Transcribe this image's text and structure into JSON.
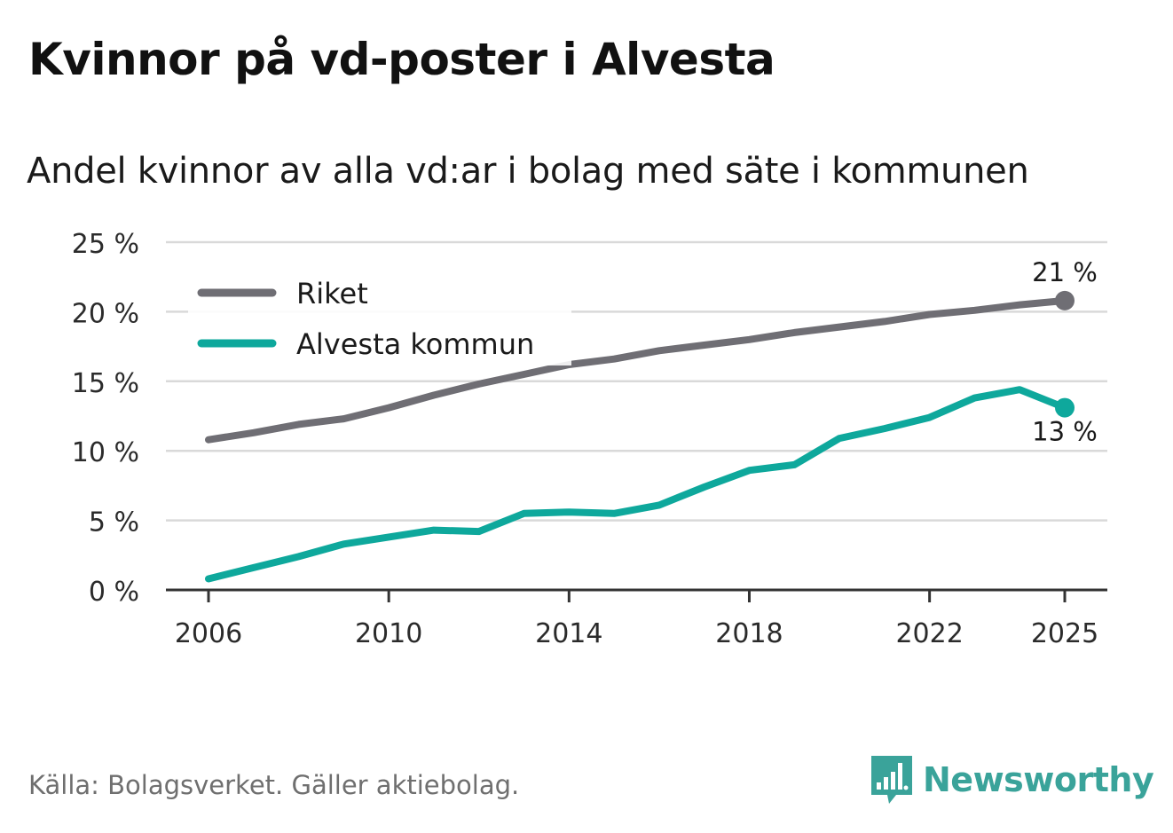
{
  "title": "Kvinnor på vd-poster i Alvesta",
  "subtitle": "Andel kvinnor av alla vd:ar i bolag med säte i kommunen",
  "source": "Källa: Bolagsverket. Gäller aktiebolag.",
  "brand": {
    "name": "Newsworthy",
    "icon": "newsworthy-logo-icon",
    "color": "#3aa39a"
  },
  "chart_data": {
    "type": "line",
    "title": "Kvinnor på vd-poster i Alvesta",
    "subtitle": "Andel kvinnor av alla vd:ar i bolag med säte i kommunen",
    "xlabel": "",
    "ylabel": "",
    "ylim": [
      0,
      25
    ],
    "xlim": [
      2006,
      2025
    ],
    "yticks": [
      0,
      5,
      10,
      15,
      20,
      25
    ],
    "ytick_labels": [
      "0 %",
      "5 %",
      "10 %",
      "15 %",
      "20 %",
      "25 %"
    ],
    "xticks": [
      2006,
      2010,
      2014,
      2018,
      2022,
      2025
    ],
    "xtick_labels": [
      "2006",
      "2010",
      "2014",
      "2018",
      "2022",
      "2025"
    ],
    "grid": true,
    "legend_position": "top-left",
    "x": [
      2006,
      2007,
      2008,
      2009,
      2010,
      2011,
      2012,
      2013,
      2014,
      2015,
      2016,
      2017,
      2018,
      2019,
      2020,
      2021,
      2022,
      2023,
      2024,
      2025
    ],
    "series": [
      {
        "name": "Riket",
        "color": "#6f6e74",
        "values": [
          10.8,
          11.3,
          11.9,
          12.3,
          13.1,
          14.0,
          14.8,
          15.5,
          16.2,
          16.6,
          17.2,
          17.6,
          18.0,
          18.5,
          18.9,
          19.3,
          19.8,
          20.1,
          20.5,
          20.8
        ],
        "end_label": "21 %"
      },
      {
        "name": "Alvesta kommun",
        "color": "#0ea89c",
        "values": [
          0.8,
          1.6,
          2.4,
          3.3,
          3.8,
          4.3,
          4.2,
          5.5,
          5.6,
          5.5,
          6.1,
          7.4,
          8.6,
          9.0,
          10.9,
          11.6,
          12.4,
          13.8,
          14.4,
          13.1
        ],
        "end_label": "13 %"
      }
    ]
  }
}
